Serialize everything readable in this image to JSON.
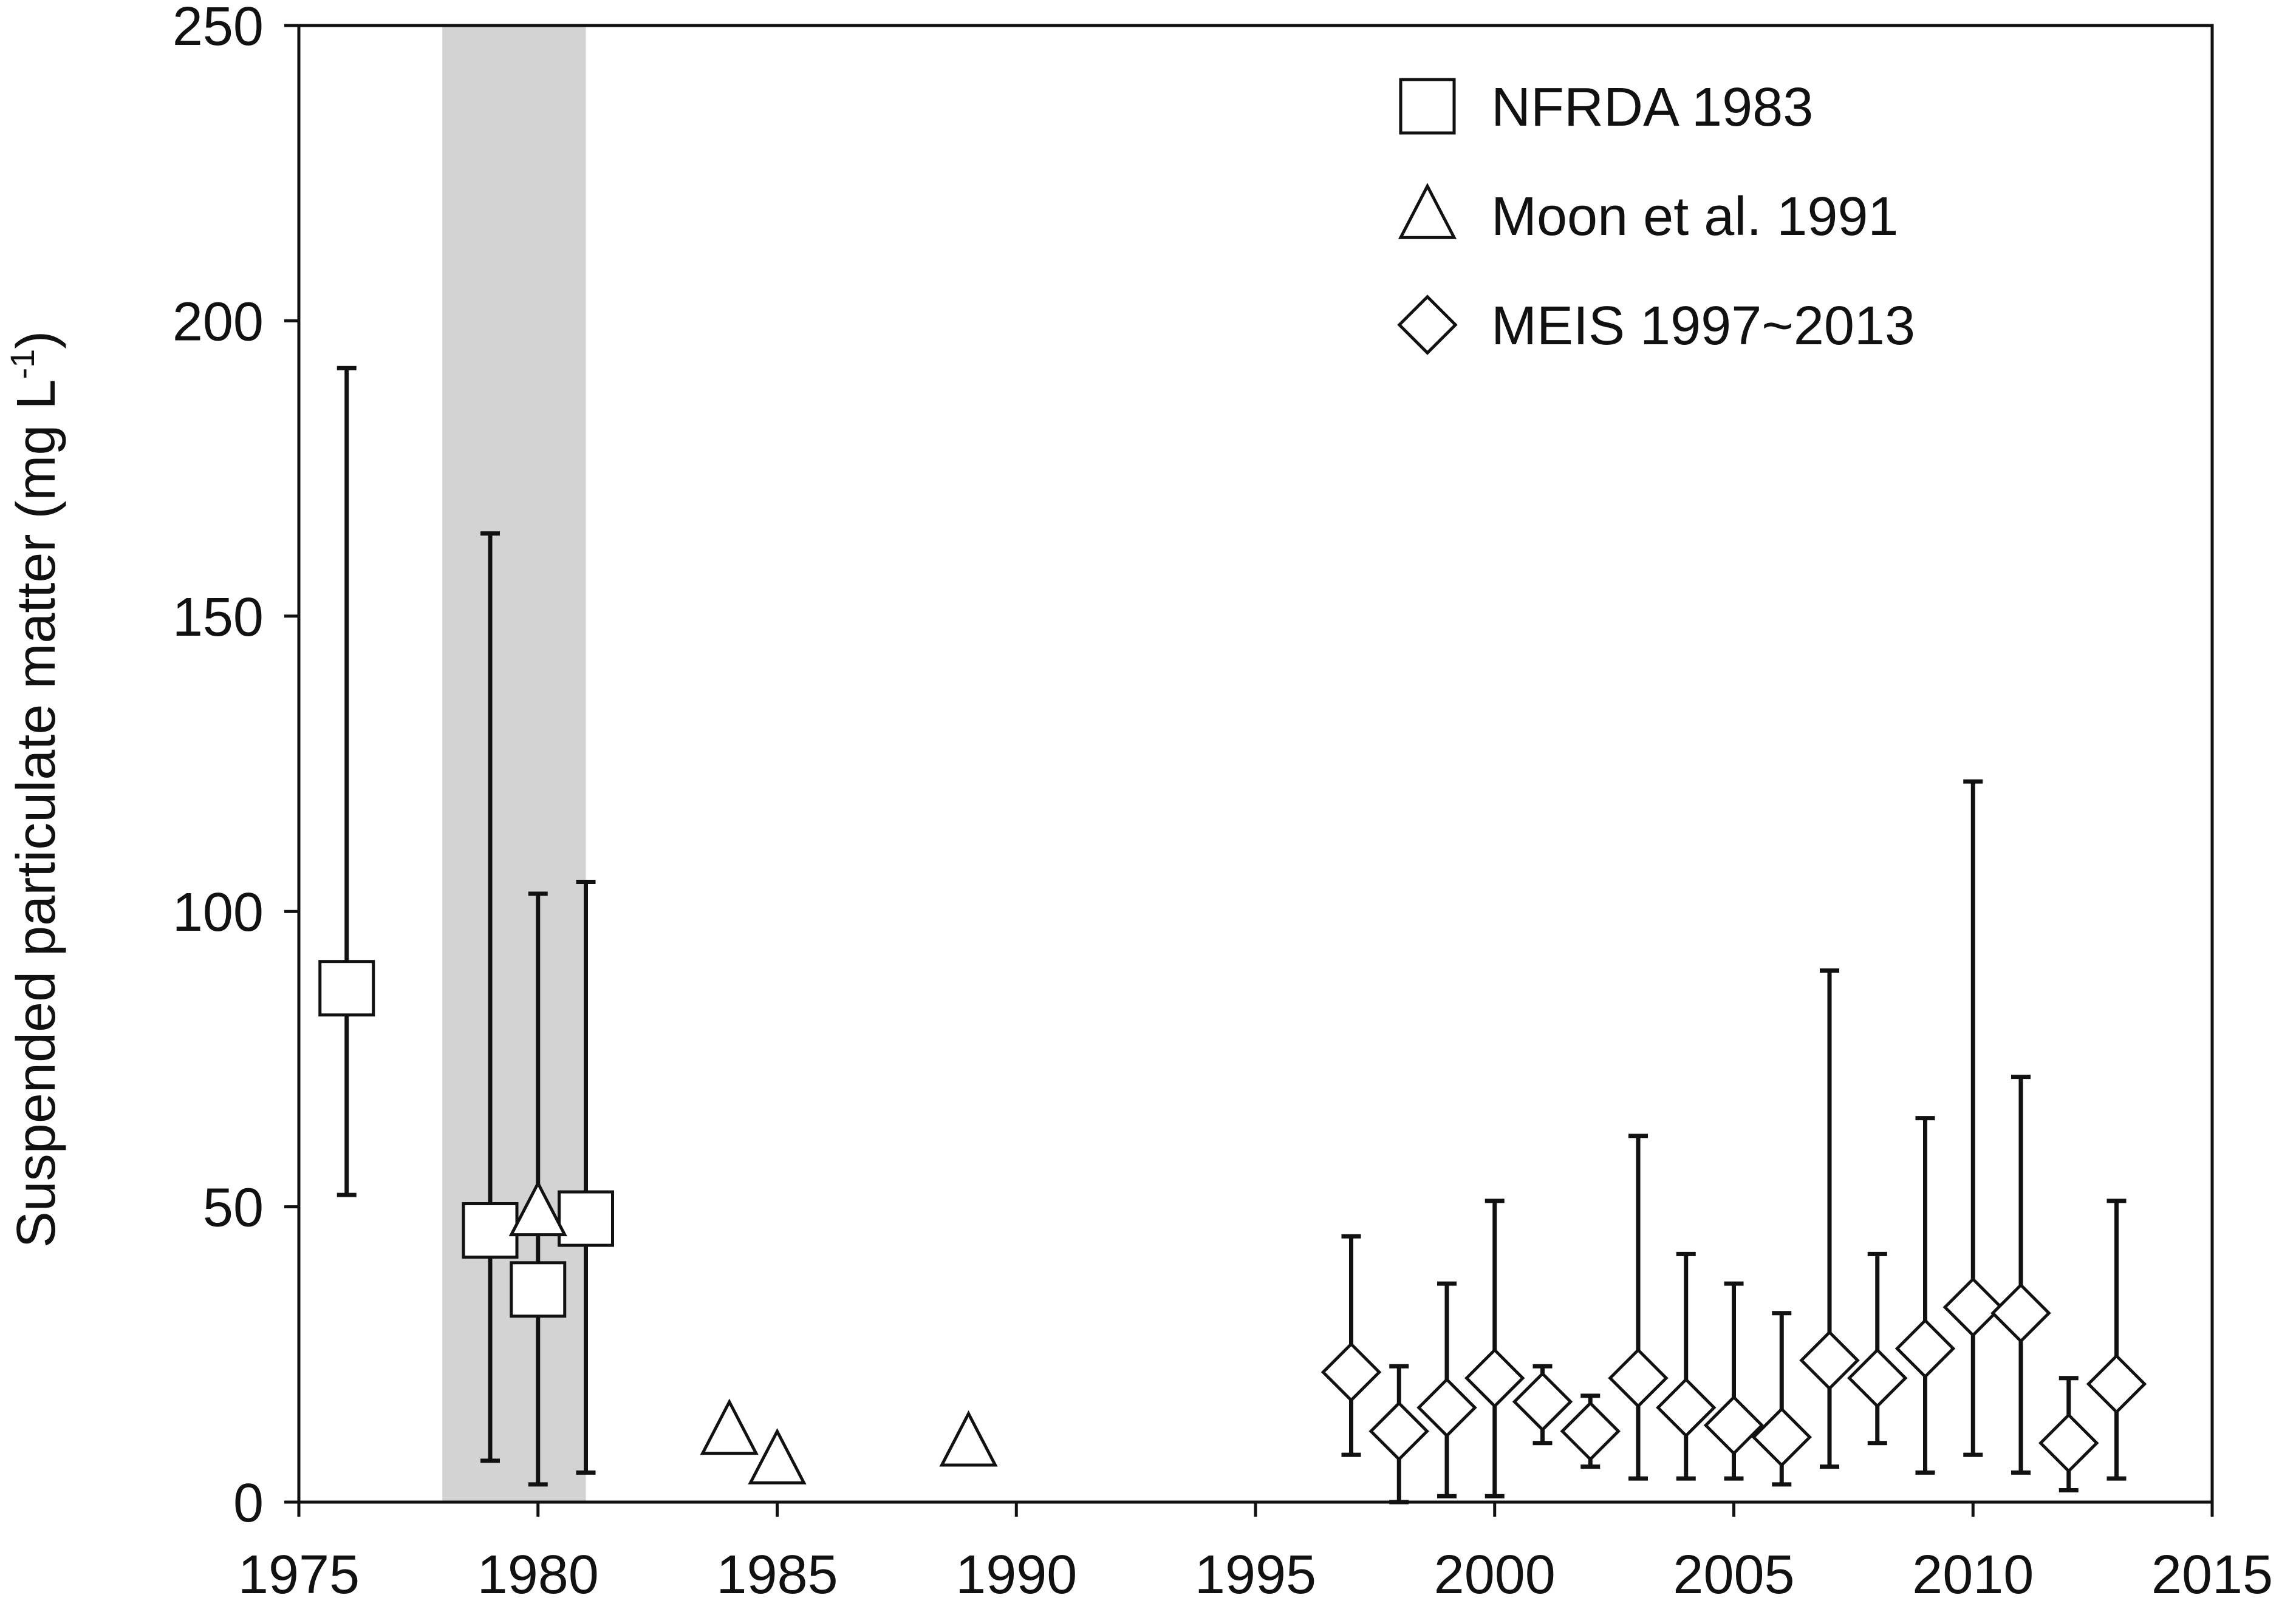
{
  "chart_data": {
    "type": "scatter",
    "title": "",
    "xlabel": "",
    "ylabel": "Suspended particulate matter (mg L",
    "ylabel_superscript": "-1",
    "ylabel_close": ")",
    "xlim": [
      1975,
      2015
    ],
    "ylim": [
      0,
      250
    ],
    "xticks": [
      1975,
      1980,
      1985,
      1990,
      1995,
      2000,
      2005,
      2010,
      2015
    ],
    "yticks": [
      0,
      50,
      100,
      150,
      200,
      250
    ],
    "grid": false,
    "legend_position": "top-right",
    "shaded_span": {
      "x_from": 1978,
      "x_to": 1981,
      "color": "#d3d3d3"
    },
    "series": [
      {
        "name": "NFRDA 1983",
        "marker": "square",
        "points": [
          {
            "x": 1976,
            "y": 87,
            "low": 52,
            "high": 192
          },
          {
            "x": 1979,
            "y": 46,
            "low": 7,
            "high": 164
          },
          {
            "x": 1980,
            "y": 36,
            "low": 3,
            "high": 103
          },
          {
            "x": 1981,
            "y": 48,
            "low": 5,
            "high": 105
          }
        ]
      },
      {
        "name": "Moon et al. 1991",
        "marker": "triangle",
        "points": [
          {
            "x": 1980,
            "y": 49
          },
          {
            "x": 1984,
            "y": 12
          },
          {
            "x": 1985,
            "y": 7
          },
          {
            "x": 1989,
            "y": 10
          }
        ]
      },
      {
        "name": "MEIS 1997~2013",
        "marker": "diamond",
        "points": [
          {
            "x": 1997,
            "y": 22,
            "low": 8,
            "high": 45
          },
          {
            "x": 1998,
            "y": 12,
            "low": 0,
            "high": 23
          },
          {
            "x": 1999,
            "y": 16,
            "low": 1,
            "high": 37
          },
          {
            "x": 2000,
            "y": 21,
            "low": 1,
            "high": 51
          },
          {
            "x": 2001,
            "y": 17,
            "low": 10,
            "high": 23
          },
          {
            "x": 2002,
            "y": 12,
            "low": 6,
            "high": 18
          },
          {
            "x": 2003,
            "y": 21,
            "low": 4,
            "high": 62
          },
          {
            "x": 2004,
            "y": 16,
            "low": 4,
            "high": 42
          },
          {
            "x": 2005,
            "y": 13,
            "low": 4,
            "high": 37
          },
          {
            "x": 2006,
            "y": 11,
            "low": 3,
            "high": 32
          },
          {
            "x": 2007,
            "y": 24,
            "low": 6,
            "high": 90
          },
          {
            "x": 2008,
            "y": 21,
            "low": 10,
            "high": 42
          },
          {
            "x": 2009,
            "y": 26,
            "low": 5,
            "high": 65
          },
          {
            "x": 2010,
            "y": 33,
            "low": 8,
            "high": 122
          },
          {
            "x": 2011,
            "y": 32,
            "low": 5,
            "high": 72
          },
          {
            "x": 2012,
            "y": 10,
            "low": 2,
            "high": 21
          },
          {
            "x": 2013,
            "y": 20,
            "low": 4,
            "high": 51
          }
        ]
      }
    ]
  }
}
